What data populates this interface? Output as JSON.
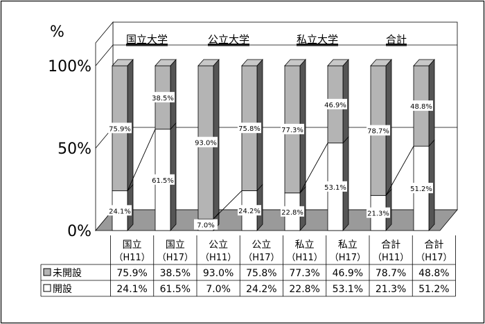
{
  "chart_data": {
    "type": "bar",
    "stacked": true,
    "percent_stacked": true,
    "y_unit": "%",
    "ylim": [
      0,
      100
    ],
    "y_ticks": [
      "0%",
      "50%",
      "100%"
    ],
    "groups": [
      "国立大学",
      "公立大学",
      "私立大学",
      "合計"
    ],
    "categories": [
      [
        "国立",
        "（H11）"
      ],
      [
        "国立",
        "（H17）"
      ],
      [
        "公立",
        "（H11）"
      ],
      [
        "公立",
        "（H17）"
      ],
      [
        "私立",
        "（H11）"
      ],
      [
        "私立",
        "（H17）"
      ],
      [
        "合計",
        "（H11）"
      ],
      [
        "合計",
        "（H17）"
      ]
    ],
    "series": [
      {
        "name": "開設",
        "color": "#ffffff",
        "values": [
          24.1,
          61.5,
          7.0,
          24.2,
          22.8,
          53.1,
          21.3,
          51.2
        ],
        "labels": [
          "24.1%",
          "61.5%",
          "7.0%",
          "24.2%",
          "22.8%",
          "53.1%",
          "21.3%",
          "51.2%"
        ]
      },
      {
        "name": "未開設",
        "color": "#b4b4b4",
        "values": [
          75.9,
          38.5,
          93.0,
          75.8,
          77.3,
          46.9,
          78.7,
          48.8
        ],
        "labels": [
          "75.9%",
          "38.5%",
          "93.0%",
          "75.8%",
          "77.3%",
          "46.9%",
          "78.7%",
          "48.8%"
        ]
      }
    ],
    "table": {
      "rows": [
        {
          "marker": "gray",
          "label": "未開設",
          "values": [
            "75.9%",
            "38.5%",
            "93.0%",
            "75.8%",
            "77.3%",
            "46.9%",
            "78.7%",
            "48.8%"
          ]
        },
        {
          "marker": "white",
          "label": "開設",
          "values": [
            "24.1%",
            "61.5%",
            "7.0%",
            "24.2%",
            "22.8%",
            "53.1%",
            "21.3%",
            "51.2%"
          ]
        }
      ]
    },
    "grid": true,
    "series_lines": true,
    "legend": "data-table"
  }
}
